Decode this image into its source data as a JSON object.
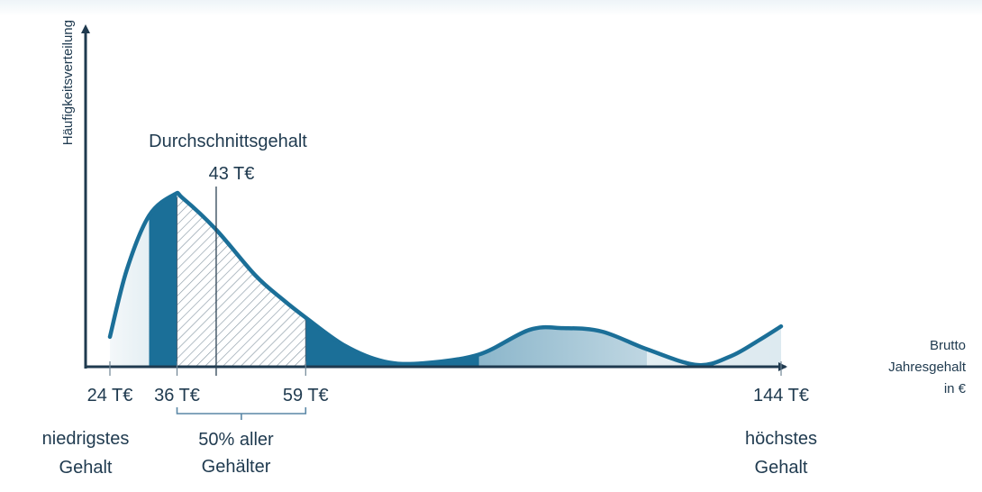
{
  "chart_data": {
    "type": "area",
    "y_axis_label": "Häufigkeitsverteilung",
    "x_axis_label_lines": [
      "Brutto",
      "Jahresgehalt",
      "in €"
    ],
    "xlim": [
      24,
      144
    ],
    "x_ticks": [
      {
        "value": 24,
        "label": "24 T€"
      },
      {
        "value": 36,
        "label": "36 T€"
      },
      {
        "value": 59,
        "label": "59 T€"
      },
      {
        "value": 144,
        "label": "144 T€"
      }
    ],
    "curve": [
      [
        24,
        0.17
      ],
      [
        27,
        0.55
      ],
      [
        31,
        0.86
      ],
      [
        35.5,
        0.98
      ],
      [
        37,
        0.96
      ],
      [
        43,
        0.78
      ],
      [
        50,
        0.52
      ],
      [
        55,
        0.38
      ],
      [
        59,
        0.28
      ],
      [
        66,
        0.12
      ],
      [
        73,
        0.03
      ],
      [
        80,
        0.02
      ],
      [
        90,
        0.07
      ],
      [
        99,
        0.21
      ],
      [
        105,
        0.22
      ],
      [
        112,
        0.2
      ],
      [
        120,
        0.1
      ],
      [
        129,
        0.01
      ],
      [
        135,
        0.06
      ],
      [
        140,
        0.15
      ],
      [
        144,
        0.23
      ]
    ],
    "highlight_range": [
      36,
      59
    ],
    "average": {
      "value": 43,
      "title": "Durchschnittsgehalt",
      "label": "43 T€"
    },
    "bracket": {
      "from": 36,
      "to": 59,
      "label_lines": [
        "50% aller",
        "Gehälter"
      ]
    },
    "annotations": [
      {
        "x": 24,
        "lines": [
          "niedrigstes",
          "Gehalt"
        ]
      },
      {
        "x": 144,
        "lines": [
          "höchstes",
          "Gehalt"
        ]
      }
    ],
    "colors": {
      "primary": "#1b6f98",
      "axis": "#1f3a4f",
      "text": "#1f3a4f",
      "hatch": "#8a9aa6"
    },
    "grid": false,
    "legend": "none"
  }
}
